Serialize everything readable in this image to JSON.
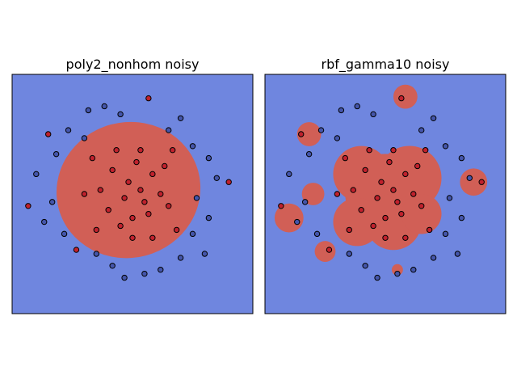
{
  "chart_data": [
    {
      "type": "scatter",
      "title": "poly2_nonhom noisy",
      "xlim": [
        -1.5,
        1.5
      ],
      "ylim": [
        -1.5,
        1.5
      ],
      "grid": false,
      "legend": "none",
      "background_class": "outer",
      "regions": {
        "type": "ellipse",
        "class": "inner",
        "center": [
          -0.05,
          0.05
        ],
        "radii": [
          0.9,
          0.85
        ],
        "rotation_deg": -15
      },
      "colors": {
        "outer": "#6f86df",
        "inner": "#d15f56",
        "point_outer": "#4455aa",
        "point_inner": "#c0212d"
      },
      "points": [
        {
          "x": -0.55,
          "y": 1.05,
          "c": "outer"
        },
        {
          "x": -0.35,
          "y": 1.1,
          "c": "outer"
        },
        {
          "x": -0.15,
          "y": 1.0,
          "c": "outer"
        },
        {
          "x": 0.2,
          "y": 1.2,
          "c": "inner"
        },
        {
          "x": 0.45,
          "y": 0.8,
          "c": "outer"
        },
        {
          "x": 0.6,
          "y": 0.95,
          "c": "outer"
        },
        {
          "x": 0.75,
          "y": 0.6,
          "c": "outer"
        },
        {
          "x": 0.95,
          "y": 0.45,
          "c": "outer"
        },
        {
          "x": 1.05,
          "y": 0.2,
          "c": "outer"
        },
        {
          "x": 1.2,
          "y": 0.15,
          "c": "inner"
        },
        {
          "x": 0.8,
          "y": -0.05,
          "c": "outer"
        },
        {
          "x": 0.95,
          "y": -0.3,
          "c": "outer"
        },
        {
          "x": 0.75,
          "y": -0.5,
          "c": "outer"
        },
        {
          "x": 0.9,
          "y": -0.75,
          "c": "outer"
        },
        {
          "x": 0.6,
          "y": -0.8,
          "c": "outer"
        },
        {
          "x": 0.35,
          "y": -0.95,
          "c": "outer"
        },
        {
          "x": 0.15,
          "y": -1.0,
          "c": "outer"
        },
        {
          "x": -0.1,
          "y": -1.05,
          "c": "outer"
        },
        {
          "x": -0.25,
          "y": -0.9,
          "c": "outer"
        },
        {
          "x": -0.45,
          "y": -0.75,
          "c": "outer"
        },
        {
          "x": -0.7,
          "y": -0.7,
          "c": "inner"
        },
        {
          "x": -0.85,
          "y": -0.5,
          "c": "outer"
        },
        {
          "x": -1.1,
          "y": -0.35,
          "c": "outer"
        },
        {
          "x": -1.0,
          "y": -0.1,
          "c": "outer"
        },
        {
          "x": -1.3,
          "y": -0.15,
          "c": "inner"
        },
        {
          "x": -1.2,
          "y": 0.25,
          "c": "outer"
        },
        {
          "x": -0.95,
          "y": 0.5,
          "c": "outer"
        },
        {
          "x": -1.05,
          "y": 0.75,
          "c": "inner"
        },
        {
          "x": -0.8,
          "y": 0.8,
          "c": "outer"
        },
        {
          "x": -0.6,
          "y": 0.7,
          "c": "outer"
        },
        {
          "x": 0.1,
          "y": 0.05,
          "c": "inner"
        },
        {
          "x": -0.05,
          "y": 0.15,
          "c": "inner"
        },
        {
          "x": 0.15,
          "y": -0.1,
          "c": "inner"
        },
        {
          "x": -0.1,
          "y": -0.05,
          "c": "inner"
        },
        {
          "x": 0.25,
          "y": 0.25,
          "c": "inner"
        },
        {
          "x": -0.25,
          "y": 0.3,
          "c": "inner"
        },
        {
          "x": 0.05,
          "y": 0.4,
          "c": "inner"
        },
        {
          "x": 0.35,
          "y": 0.0,
          "c": "inner"
        },
        {
          "x": -0.3,
          "y": -0.2,
          "c": "inner"
        },
        {
          "x": 0.0,
          "y": -0.3,
          "c": "inner"
        },
        {
          "x": 0.2,
          "y": -0.25,
          "c": "inner"
        },
        {
          "x": -0.15,
          "y": -0.4,
          "c": "inner"
        },
        {
          "x": 0.4,
          "y": 0.35,
          "c": "inner"
        },
        {
          "x": -0.4,
          "y": 0.05,
          "c": "inner"
        },
        {
          "x": 0.45,
          "y": -0.15,
          "c": "inner"
        },
        {
          "x": 0.1,
          "y": 0.55,
          "c": "inner"
        },
        {
          "x": -0.2,
          "y": 0.55,
          "c": "inner"
        },
        {
          "x": 0.5,
          "y": 0.55,
          "c": "inner"
        },
        {
          "x": -0.5,
          "y": 0.45,
          "c": "inner"
        },
        {
          "x": 0.55,
          "y": -0.45,
          "c": "inner"
        },
        {
          "x": -0.45,
          "y": -0.45,
          "c": "inner"
        },
        {
          "x": 0.0,
          "y": -0.55,
          "c": "inner"
        },
        {
          "x": 0.25,
          "y": -0.55,
          "c": "inner"
        },
        {
          "x": -0.6,
          "y": 0.0,
          "c": "inner"
        }
      ]
    },
    {
      "type": "scatter",
      "title": "rbf_gamma10 noisy",
      "xlim": [
        -1.5,
        1.5
      ],
      "ylim": [
        -1.5,
        1.5
      ],
      "grid": false,
      "legend": "none",
      "background_class": "outer",
      "regions": {
        "type": "blobs",
        "class": "inner",
        "circles": [
          {
            "cx": 0.0,
            "cy": 0.0,
            "r": 0.5
          },
          {
            "cx": 0.3,
            "cy": 0.2,
            "r": 0.4
          },
          {
            "cx": -0.3,
            "cy": 0.25,
            "r": 0.35
          },
          {
            "cx": 0.1,
            "cy": -0.35,
            "r": 0.35
          },
          {
            "cx": -0.35,
            "cy": -0.35,
            "r": 0.3
          },
          {
            "cx": 0.45,
            "cy": -0.25,
            "r": 0.25
          },
          {
            "cx": 0.25,
            "cy": 1.22,
            "r": 0.15
          },
          {
            "cx": 1.1,
            "cy": 0.15,
            "r": 0.17
          },
          {
            "cx": -1.2,
            "cy": -0.3,
            "r": 0.18
          },
          {
            "cx": -0.9,
            "cy": -0.0,
            "r": 0.14
          },
          {
            "cx": -0.95,
            "cy": 0.75,
            "r": 0.15
          },
          {
            "cx": -0.75,
            "cy": -0.72,
            "r": 0.13
          },
          {
            "cx": 0.15,
            "cy": -0.95,
            "r": 0.07
          }
        ]
      },
      "colors": {
        "outer": "#6f86df",
        "inner": "#d15f56",
        "point_outer": "#4455aa",
        "point_inner": "#c0212d"
      },
      "points": [
        {
          "x": -0.55,
          "y": 1.05,
          "c": "outer"
        },
        {
          "x": -0.35,
          "y": 1.1,
          "c": "outer"
        },
        {
          "x": -0.15,
          "y": 1.0,
          "c": "outer"
        },
        {
          "x": 0.2,
          "y": 1.2,
          "c": "inner"
        },
        {
          "x": 0.45,
          "y": 0.8,
          "c": "outer"
        },
        {
          "x": 0.6,
          "y": 0.95,
          "c": "outer"
        },
        {
          "x": 0.75,
          "y": 0.6,
          "c": "outer"
        },
        {
          "x": 0.95,
          "y": 0.45,
          "c": "outer"
        },
        {
          "x": 1.05,
          "y": 0.2,
          "c": "outer"
        },
        {
          "x": 1.2,
          "y": 0.15,
          "c": "inner"
        },
        {
          "x": 0.8,
          "y": -0.05,
          "c": "outer"
        },
        {
          "x": 0.95,
          "y": -0.3,
          "c": "outer"
        },
        {
          "x": 0.75,
          "y": -0.5,
          "c": "outer"
        },
        {
          "x": 0.9,
          "y": -0.75,
          "c": "outer"
        },
        {
          "x": 0.6,
          "y": -0.8,
          "c": "outer"
        },
        {
          "x": 0.35,
          "y": -0.95,
          "c": "outer"
        },
        {
          "x": 0.15,
          "y": -1.0,
          "c": "outer"
        },
        {
          "x": -0.1,
          "y": -1.05,
          "c": "outer"
        },
        {
          "x": -0.25,
          "y": -0.9,
          "c": "outer"
        },
        {
          "x": -0.45,
          "y": -0.75,
          "c": "outer"
        },
        {
          "x": -0.7,
          "y": -0.7,
          "c": "inner"
        },
        {
          "x": -0.85,
          "y": -0.5,
          "c": "outer"
        },
        {
          "x": -1.1,
          "y": -0.35,
          "c": "outer"
        },
        {
          "x": -1.0,
          "y": -0.1,
          "c": "outer"
        },
        {
          "x": -1.3,
          "y": -0.15,
          "c": "inner"
        },
        {
          "x": -1.2,
          "y": 0.25,
          "c": "outer"
        },
        {
          "x": -0.95,
          "y": 0.5,
          "c": "outer"
        },
        {
          "x": -1.05,
          "y": 0.75,
          "c": "inner"
        },
        {
          "x": -0.8,
          "y": 0.8,
          "c": "outer"
        },
        {
          "x": -0.6,
          "y": 0.7,
          "c": "outer"
        },
        {
          "x": 0.1,
          "y": 0.05,
          "c": "inner"
        },
        {
          "x": -0.05,
          "y": 0.15,
          "c": "inner"
        },
        {
          "x": 0.15,
          "y": -0.1,
          "c": "inner"
        },
        {
          "x": -0.1,
          "y": -0.05,
          "c": "inner"
        },
        {
          "x": 0.25,
          "y": 0.25,
          "c": "inner"
        },
        {
          "x": -0.25,
          "y": 0.3,
          "c": "inner"
        },
        {
          "x": 0.05,
          "y": 0.4,
          "c": "inner"
        },
        {
          "x": 0.35,
          "y": 0.0,
          "c": "inner"
        },
        {
          "x": -0.3,
          "y": -0.2,
          "c": "inner"
        },
        {
          "x": 0.0,
          "y": -0.3,
          "c": "inner"
        },
        {
          "x": 0.2,
          "y": -0.25,
          "c": "inner"
        },
        {
          "x": -0.15,
          "y": -0.4,
          "c": "inner"
        },
        {
          "x": 0.4,
          "y": 0.35,
          "c": "inner"
        },
        {
          "x": -0.4,
          "y": 0.05,
          "c": "inner"
        },
        {
          "x": 0.45,
          "y": -0.15,
          "c": "inner"
        },
        {
          "x": 0.1,
          "y": 0.55,
          "c": "inner"
        },
        {
          "x": -0.2,
          "y": 0.55,
          "c": "inner"
        },
        {
          "x": 0.5,
          "y": 0.55,
          "c": "inner"
        },
        {
          "x": -0.5,
          "y": 0.45,
          "c": "inner"
        },
        {
          "x": 0.55,
          "y": -0.45,
          "c": "inner"
        },
        {
          "x": -0.45,
          "y": -0.45,
          "c": "inner"
        },
        {
          "x": 0.0,
          "y": -0.55,
          "c": "inner"
        },
        {
          "x": 0.25,
          "y": -0.55,
          "c": "inner"
        },
        {
          "x": -0.6,
          "y": 0.0,
          "c": "inner"
        }
      ]
    }
  ]
}
